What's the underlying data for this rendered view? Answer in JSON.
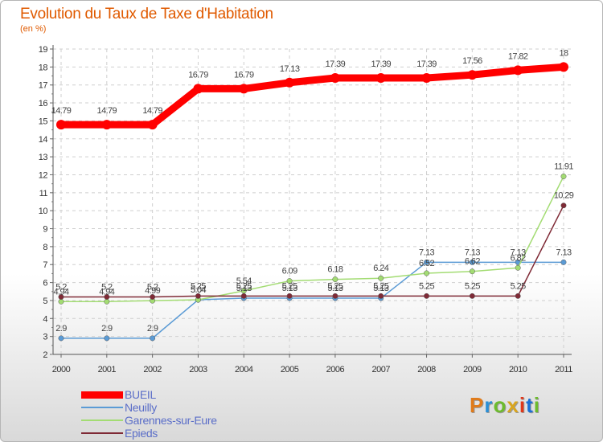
{
  "header": {
    "title": "Evolution du Taux de Taxe d'Habitation",
    "subtitle": "(en %)"
  },
  "logo": {
    "letters": [
      "P",
      "r",
      "o",
      "x",
      "i",
      "t",
      "i"
    ],
    "colors": [
      "#e07b1a",
      "#2a8fd6",
      "#6dbb2e",
      "#d9a51e",
      "#e0371a",
      "#1a6fd6",
      "#6dbb2e"
    ]
  },
  "chart_data": {
    "type": "line",
    "title": "Evolution du Taux de Taxe d'Habitation",
    "ylabel": "(en %)",
    "xlabel": "",
    "categories": [
      "2000",
      "2001",
      "2002",
      "2003",
      "2004",
      "2005",
      "2006",
      "2007",
      "2008",
      "2009",
      "2010",
      "2011"
    ],
    "ylim": [
      2,
      19
    ],
    "yticks": [
      "2",
      "3",
      "4",
      "5",
      "6",
      "7",
      "8",
      "9",
      "10",
      "11",
      "12",
      "13",
      "14",
      "15",
      "16",
      "17",
      "18",
      "19"
    ],
    "grid": true,
    "legend_position": "bottom-left",
    "series": [
      {
        "name": "BUEIL",
        "color": "#ff0000",
        "values": [
          14.79,
          14.79,
          14.79,
          16.79,
          16.79,
          17.13,
          17.39,
          17.39,
          17.39,
          17.56,
          17.82,
          18
        ],
        "labels": [
          "14.79",
          "14.79",
          "14.79",
          "16.79",
          "16.79",
          "17.13",
          "17.39",
          "17.39",
          "17.39",
          "17.56",
          "17.82",
          "18"
        ]
      },
      {
        "name": "Neuilly",
        "color": "#5b9bd5",
        "values": [
          2.9,
          2.9,
          2.9,
          5.04,
          5.13,
          5.13,
          5.13,
          5.13,
          7.13,
          7.13,
          7.13,
          7.13
        ],
        "labels": [
          "2.9",
          "2.9",
          "2.9",
          "5.04",
          "5.13",
          "5.13",
          "5.13",
          "5.13",
          "7.13",
          "7.13",
          "7.13",
          "7.13"
        ]
      },
      {
        "name": "Garennes-sur-Eure",
        "color": "#a3dc73",
        "values": [
          4.94,
          4.94,
          4.99,
          5.04,
          5.54,
          6.09,
          6.18,
          6.24,
          6.52,
          6.62,
          6.82,
          11.91
        ],
        "labels": [
          "4.94",
          "4.94",
          "4.99",
          "5.04",
          "5.54",
          "6.09",
          "6.18",
          "6.24",
          "6.52",
          "6.62",
          "6.82",
          "11.91"
        ]
      },
      {
        "name": "Epieds",
        "color": "#7f2a36",
        "values": [
          5.2,
          5.2,
          5.2,
          5.25,
          5.25,
          5.25,
          5.25,
          5.25,
          5.25,
          5.25,
          5.25,
          10.29
        ],
        "labels": [
          "5.2",
          "5.2",
          "5.2",
          "5.25",
          "5.25",
          "5.25",
          "5.25",
          "5.25",
          "5.25",
          "5.25",
          "5.25",
          "10.29"
        ]
      }
    ]
  }
}
